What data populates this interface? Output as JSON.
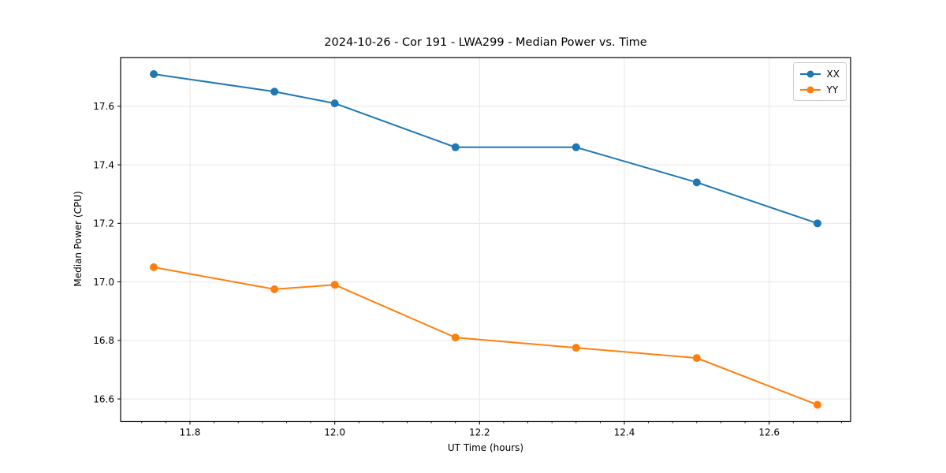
{
  "chart_data": {
    "type": "line",
    "title": "2024-10-26 - Cor 191 - LWA299 - Median Power vs. Time",
    "xlabel": "UT Time (hours)",
    "ylabel": "Median Power (CPU)",
    "xlim": [
      11.7042,
      12.7125
    ],
    "ylim": [
      16.5235,
      17.7665
    ],
    "x_ticks": [
      11.8,
      12.0,
      12.2,
      12.4,
      12.6
    ],
    "y_ticks": [
      16.6,
      16.8,
      17.0,
      17.2,
      17.4,
      17.6
    ],
    "x_minor_step": 0.0333333,
    "grid": true,
    "grid_color": "#e7e7e7",
    "spine_color": "#000000",
    "legend_position": "upper right",
    "x": [
      11.75,
      11.9167,
      12.0,
      12.1667,
      12.3333,
      12.5,
      12.6667
    ],
    "series": [
      {
        "name": "XX",
        "color": "#1f77b4",
        "values": [
          17.71,
          17.65,
          17.61,
          17.46,
          17.46,
          17.34,
          17.2
        ]
      },
      {
        "name": "YY",
        "color": "#ff7f0e",
        "values": [
          17.05,
          16.975,
          16.99,
          16.81,
          16.775,
          16.74,
          16.58
        ]
      }
    ]
  }
}
